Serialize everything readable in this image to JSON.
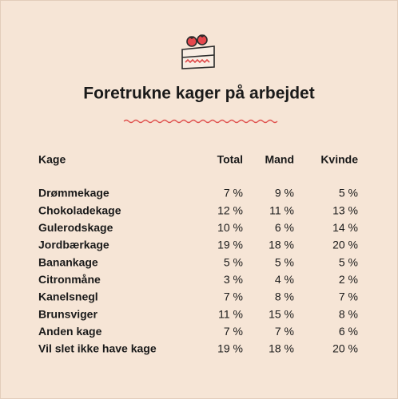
{
  "header": {
    "title": "Foretrukne kager på arbejdet"
  },
  "table": {
    "columns": [
      "Kage",
      "Total",
      "Mand",
      "Kvinde"
    ],
    "rows": [
      [
        "Drømmekage",
        "7 %",
        "9 %",
        "5 %"
      ],
      [
        "Chokoladekage",
        "12 %",
        "11 %",
        "13 %"
      ],
      [
        "Gulerodskage",
        "10 %",
        "6 %",
        "14 %"
      ],
      [
        "Jordbærkage",
        "19 %",
        "18 %",
        "20 %"
      ],
      [
        "Banankage",
        "5 %",
        "5 %",
        "5 %"
      ],
      [
        "Citronmåne",
        "3 %",
        "4 %",
        "2 %"
      ],
      [
        "Kanelsnegl",
        "7 %",
        "8 %",
        "7 %"
      ],
      [
        "Brunsviger",
        "11 %",
        "15 %",
        "8 %"
      ],
      [
        "Anden kage",
        "7 %",
        "7 %",
        "6 %"
      ],
      [
        "Vil slet ikke have kage",
        "19 %",
        "18 %",
        "20 %"
      ]
    ]
  }
}
